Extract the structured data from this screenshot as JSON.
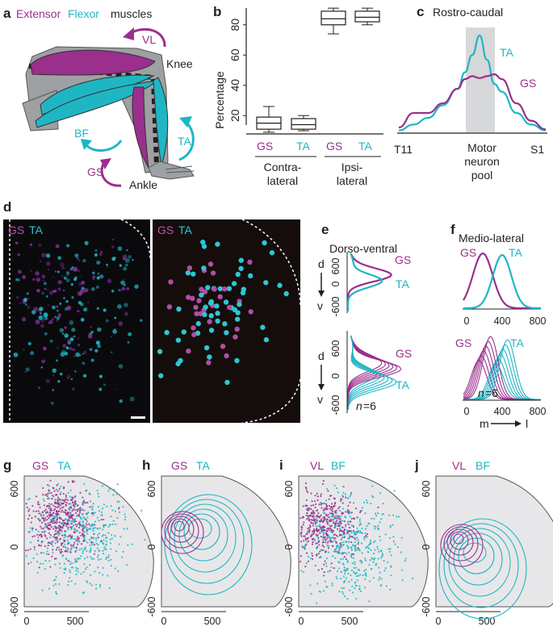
{
  "colors": {
    "magenta": "#9b2f8c",
    "cyan": "#1fb6c4",
    "grey": "#d7d8da",
    "black": "#231f20"
  },
  "panel_a": {
    "letter": "a",
    "legend_extensor": "Extensor",
    "legend_flexor": "Flexor",
    "legend_muscles": "muscles",
    "vl": "VL",
    "knee": "Knee",
    "bf": "BF",
    "ta": "TA",
    "gs": "GS",
    "ankle": "Ankle"
  },
  "panel_b": {
    "letter": "b",
    "ylabel": "Percentage",
    "groups": [
      "Contra-",
      "lateral",
      "Ipsi-",
      "lateral"
    ],
    "boxes": [
      "GS",
      "TA",
      "GS",
      "TA"
    ]
  },
  "panel_c": {
    "letter": "c",
    "title": "Rostro-caudal",
    "ta": "TA",
    "gs": "GS",
    "left": "T11",
    "right": "S1",
    "pool": [
      "Motor",
      "neuron",
      "pool"
    ]
  },
  "panel_d": {
    "letter": "d",
    "gs": "GS",
    "ta": "TA"
  },
  "panel_e": {
    "letter": "e",
    "title": "Dorso-ventral",
    "d": "d",
    "v": "v",
    "gs": "GS",
    "ta": "TA",
    "n": "n",
    "n_value": "=6"
  },
  "panel_f": {
    "letter": "f",
    "title": "Medio-lateral",
    "gs": "GS",
    "ta": "TA",
    "n": "n",
    "n_value": "=6",
    "m": "m",
    "l": "l"
  },
  "panel_g": {
    "letter": "g",
    "a": "GS",
    "b": "TA"
  },
  "panel_h": {
    "letter": "h",
    "a": "GS",
    "b": "TA"
  },
  "panel_i": {
    "letter": "i",
    "a": "VL",
    "b": "BF"
  },
  "panel_j": {
    "letter": "j",
    "a": "VL",
    "b": "BF"
  },
  "chart_data": [
    {
      "type": "box",
      "panel": "b",
      "ylabel": "Percentage",
      "ylim": [
        10,
        90
      ],
      "yticks": [
        "20",
        "40",
        "60",
        "80"
      ],
      "categories": [
        "GS",
        "TA",
        "GS",
        "TA"
      ],
      "groups": [
        "Contra-lateral",
        "Ipsi-lateral"
      ],
      "boxes": [
        {
          "min": 9,
          "q1": 11,
          "median": 15,
          "q3": 19,
          "max": 26
        },
        {
          "min": 10,
          "q1": 11,
          "median": 14,
          "q3": 18,
          "max": 20
        },
        {
          "min": 74,
          "q1": 80,
          "median": 84,
          "q3": 89,
          "max": 91
        },
        {
          "min": 80,
          "q1": 82,
          "median": 85,
          "q3": 89,
          "max": 91
        }
      ]
    },
    {
      "type": "line",
      "panel": "c",
      "title": "Rostro-caudal",
      "xticks": [
        "T11",
        "S1"
      ],
      "x": [
        0,
        0.1,
        0.2,
        0.3,
        0.4,
        0.45,
        0.5,
        0.55,
        0.6,
        0.65,
        0.7,
        0.8,
        0.9,
        1.0
      ],
      "series": [
        {
          "name": "TA",
          "values": [
            0.02,
            0.08,
            0.15,
            0.28,
            0.45,
            0.62,
            0.8,
            1.0,
            0.75,
            0.5,
            0.42,
            0.2,
            0.08,
            0.02
          ]
        },
        {
          "name": "GS",
          "values": [
            0.05,
            0.2,
            0.2,
            0.3,
            0.45,
            0.55,
            0.58,
            0.56,
            0.58,
            0.6,
            0.55,
            0.3,
            0.12,
            0.03
          ]
        }
      ]
    },
    {
      "type": "line",
      "panel": "e",
      "title": "Dorso-ventral",
      "yticks": [
        "600",
        "0",
        "-600"
      ],
      "series": [
        {
          "name": "GS"
        },
        {
          "name": "TA"
        }
      ]
    },
    {
      "type": "line",
      "panel": "f",
      "title": "Medio-lateral",
      "xticks": [
        "0",
        "400",
        "800"
      ],
      "series": [
        {
          "name": "GS"
        },
        {
          "name": "TA"
        }
      ]
    },
    {
      "type": "scatter",
      "panel": "g",
      "xticks": [
        "0",
        "500"
      ],
      "yticks": [
        "600",
        "0",
        "-600"
      ],
      "series": [
        {
          "name": "GS"
        },
        {
          "name": "TA"
        }
      ]
    },
    {
      "type": "contour",
      "panel": "h",
      "xticks": [
        "0",
        "500"
      ],
      "yticks": [
        "600",
        "0",
        "-600"
      ],
      "series": [
        {
          "name": "GS"
        },
        {
          "name": "TA"
        }
      ]
    },
    {
      "type": "scatter",
      "panel": "i",
      "xticks": [
        "0",
        "500"
      ],
      "yticks": [
        "600",
        "0",
        "-600"
      ],
      "series": [
        {
          "name": "VL"
        },
        {
          "name": "BF"
        }
      ]
    },
    {
      "type": "contour",
      "panel": "j",
      "xticks": [
        "0",
        "500"
      ],
      "yticks": [
        "600",
        "0",
        "-600"
      ],
      "series": [
        {
          "name": "VL"
        },
        {
          "name": "BF"
        }
      ]
    }
  ]
}
